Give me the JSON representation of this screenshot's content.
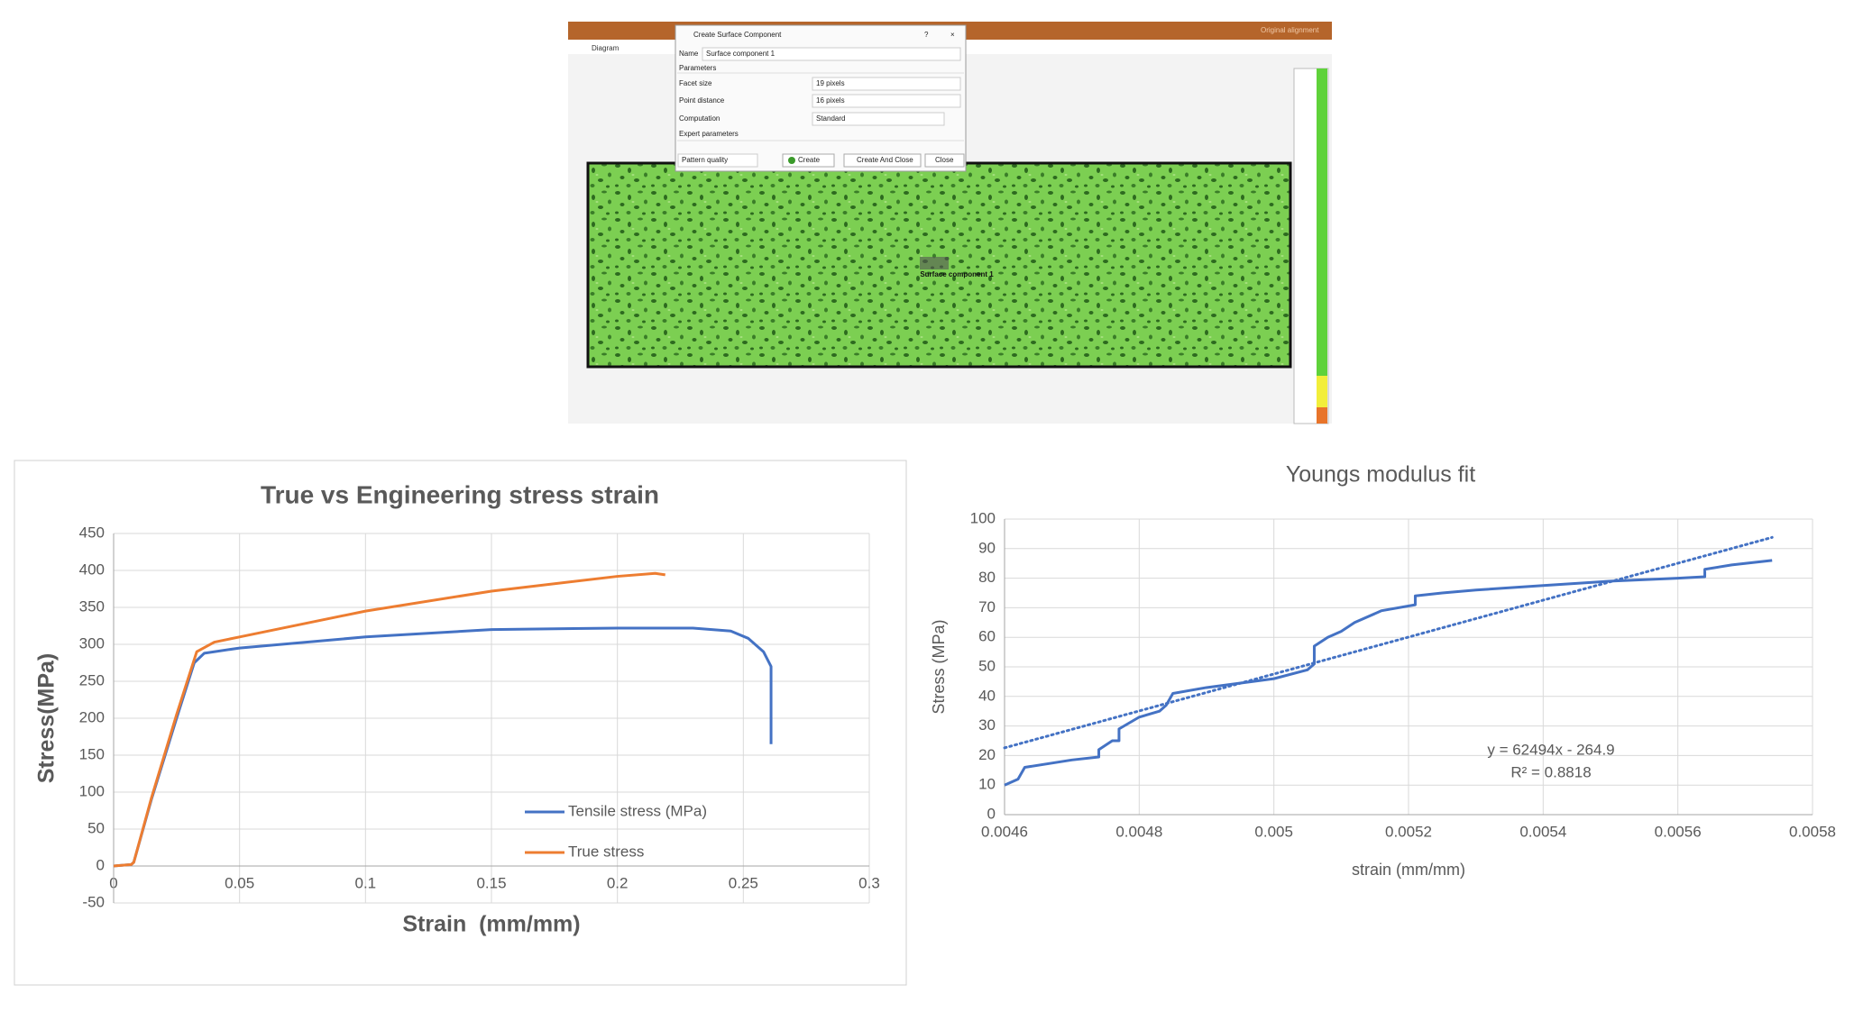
{
  "screenshot": {
    "menu_tab": "Diagram",
    "toolbar_right": "Original alignment",
    "dialog": {
      "title": "Create Surface Component",
      "help": "?",
      "close_icon": "×",
      "name_label": "Name",
      "name_value": "Surface component 1",
      "section": "Parameters",
      "fields": [
        {
          "label": "Facet size",
          "value": "19 pixels"
        },
        {
          "label": "Point distance",
          "value": "16 pixels"
        },
        {
          "label": "Computation",
          "value": "Standard"
        }
      ],
      "expert": "Expert parameters",
      "pattern": "Pattern quality",
      "buttons": [
        "Create",
        "Create And Close",
        "Close"
      ]
    },
    "component_label": "Surface component 1"
  },
  "chart_data": [
    {
      "type": "line",
      "title": "True vs Engineering stress strain",
      "x_label": "Strain  (mm/mm)",
      "y_label": "Stress(MPa)",
      "xlim": [
        0,
        0.3
      ],
      "xticks": [
        0,
        0.05,
        0.1,
        0.15,
        0.2,
        0.25,
        0.3
      ],
      "ylim": [
        -50,
        450
      ],
      "yticks": [
        -50,
        0,
        50,
        100,
        150,
        200,
        250,
        300,
        350,
        400,
        450
      ],
      "grid": true,
      "legend": "lower right",
      "series": [
        {
          "name": "Tensile stress (MPa)",
          "color": "#4472c4",
          "x": [
            0,
            0.007,
            0.008,
            0.015,
            0.025,
            0.032,
            0.036,
            0.05,
            0.1,
            0.15,
            0.2,
            0.23,
            0.245,
            0.252,
            0.258,
            0.261,
            0.261
          ],
          "values": [
            0,
            2,
            5,
            90,
            200,
            275,
            288,
            295,
            310,
            320,
            322,
            322,
            318,
            308,
            290,
            270,
            165
          ]
        },
        {
          "name": "True stress",
          "color": "#ed7d31",
          "x": [
            0,
            0.007,
            0.008,
            0.015,
            0.025,
            0.033,
            0.04,
            0.05,
            0.1,
            0.15,
            0.2,
            0.215,
            0.219
          ],
          "values": [
            0,
            2,
            5,
            92,
            205,
            290,
            303,
            310,
            345,
            372,
            392,
            396,
            394
          ]
        }
      ]
    },
    {
      "type": "line",
      "title": "Youngs modulus fit",
      "x_label": "strain (mm/mm)",
      "y_label": "Stress (MPa)",
      "xlim": [
        0.0046,
        0.0058
      ],
      "xticks": [
        0.0046,
        0.0048,
        0.005,
        0.0052,
        0.0054,
        0.0056,
        0.0058
      ],
      "ylim": [
        0,
        100
      ],
      "yticks": [
        0,
        10,
        20,
        30,
        40,
        50,
        60,
        70,
        80,
        90,
        100
      ],
      "grid": true,
      "annotations": [
        "y = 62494x - 264.9",
        "R² = 0.8818"
      ],
      "series": [
        {
          "color": "#4472c4",
          "x": [
            0.0046,
            0.00462,
            0.00463,
            0.0047,
            0.00474,
            0.00474,
            0.00476,
            0.00477,
            0.00477,
            0.0048,
            0.00483,
            0.00484,
            0.00485,
            0.0049,
            0.005,
            0.00505,
            0.00506,
            0.00506,
            0.00508,
            0.0051,
            0.00512,
            0.00516,
            0.00521,
            0.00521,
            0.00525,
            0.0053,
            0.0054,
            0.0055,
            0.0056,
            0.00564,
            0.00564,
            0.00568,
            0.00574
          ],
          "values": [
            10,
            12,
            16,
            18.5,
            19.5,
            22,
            25,
            25,
            29,
            33,
            35,
            37,
            41,
            43,
            46,
            49,
            51,
            57,
            60,
            62,
            65,
            69,
            71,
            74,
            75,
            76,
            77.5,
            79,
            80,
            80.5,
            83,
            84.5,
            86
          ]
        },
        {
          "color": "#4472c4",
          "dash": "dotted",
          "x": [
            0.0046,
            0.00574
          ],
          "values": [
            22.6,
            93.8
          ]
        }
      ]
    }
  ]
}
